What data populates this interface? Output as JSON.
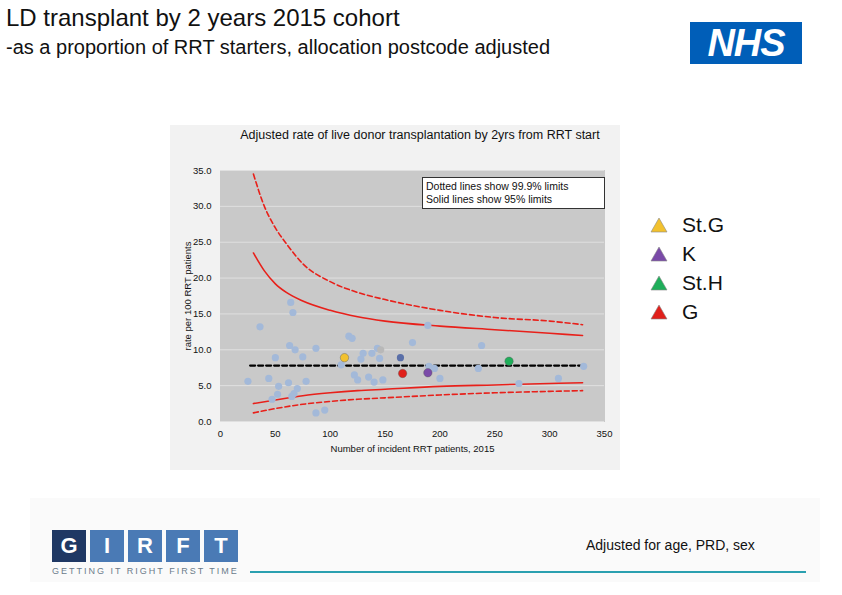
{
  "page": {
    "title": "LD transplant by 2 years 2015 cohort",
    "subtitle": "-as a proportion of RRT starters, allocation postcode adjusted",
    "logo": "NHS",
    "footer_logo_letters": [
      "G",
      "I",
      "R",
      "F",
      "T"
    ],
    "footer_tagline": "GETTING IT RIGHT FIRST TIME",
    "caption": "Adjusted for age, PRD, sex"
  },
  "chart_data": {
    "type": "scatter",
    "title": "Adjusted rate of live donor transplantation by 2yrs from RRT start",
    "x_label": "Number of incident RRT patients, 2015",
    "y_label": "rate per 100 RRT patients",
    "annotations": [
      "Dotted lines show 99.9% limits",
      "Solid lines show 95% limits"
    ],
    "xlim": [
      0,
      350
    ],
    "ylim": [
      0,
      35
    ],
    "xticks": [
      0,
      50,
      100,
      150,
      200,
      250,
      300,
      350
    ],
    "yticks": [
      {
        "value": 0,
        "label": "0.0"
      },
      {
        "value": 5,
        "label": "5.0"
      },
      {
        "value": 10,
        "label": "10.0"
      },
      {
        "value": 15,
        "label": "15.0"
      },
      {
        "value": 20,
        "label": "20.0"
      },
      {
        "value": 25,
        "label": "25.0"
      },
      {
        "value": 30,
        "label": "30.0"
      },
      {
        "value": 35,
        "label": "35.0"
      }
    ],
    "grid": true,
    "legend": "right",
    "series": [
      {
        "type": "line",
        "line_style": "dashed",
        "color": "#e8201a",
        "x": [
          30,
          40,
          50,
          60,
          75,
          100,
          125,
          150,
          200,
          250,
          300,
          330
        ],
        "values": [
          34.5,
          30.0,
          27.0,
          24.8,
          22.0,
          19.5,
          18.0,
          17.0,
          15.5,
          14.5,
          14.0,
          13.5
        ]
      },
      {
        "type": "line",
        "line_style": "solid",
        "color": "#e8201a",
        "x": [
          30,
          40,
          50,
          60,
          75,
          100,
          125,
          150,
          200,
          250,
          300,
          330
        ],
        "values": [
          23.5,
          21.0,
          19.2,
          18.0,
          16.8,
          15.5,
          14.6,
          14.0,
          13.3,
          12.8,
          12.3,
          12.0
        ]
      },
      {
        "type": "line",
        "line_style": "solid",
        "color": "#e8201a",
        "x": [
          30,
          50,
          75,
          100,
          125,
          150,
          200,
          250,
          300,
          330
        ],
        "values": [
          2.5,
          3.0,
          3.6,
          4.0,
          4.3,
          4.5,
          4.9,
          5.1,
          5.3,
          5.4
        ]
      },
      {
        "type": "line",
        "line_style": "dashed",
        "color": "#e8201a",
        "x": [
          30,
          50,
          75,
          100,
          125,
          150,
          200,
          250,
          300,
          330
        ],
        "values": [
          1.2,
          1.8,
          2.4,
          2.8,
          3.1,
          3.3,
          3.7,
          4.0,
          4.2,
          4.3
        ]
      },
      {
        "type": "line",
        "line_style": "dashed",
        "color": "#000000",
        "x": [
          27,
          331
        ],
        "values": [
          7.8,
          7.8
        ]
      },
      {
        "type": "scatter",
        "marker": "circle",
        "color": "#a3b9d9",
        "x": [
          25,
          36,
          44,
          47,
          50,
          52,
          53,
          62,
          63,
          64,
          65,
          66,
          67,
          68,
          70,
          75,
          78,
          87,
          87,
          95,
          110,
          117,
          120,
          122,
          125,
          128,
          130,
          135,
          138,
          140,
          143,
          145,
          148,
          175,
          189,
          190,
          195,
          200,
          235,
          238,
          272,
          308,
          331
        ],
        "values": [
          5.6,
          13.2,
          6.0,
          3.1,
          8.9,
          3.8,
          4.9,
          5.4,
          10.6,
          16.6,
          3.5,
          15.2,
          3.9,
          10.0,
          4.6,
          9.0,
          5.6,
          10.2,
          1.2,
          1.6,
          7.9,
          11.9,
          11.6,
          6.5,
          5.8,
          8.7,
          9.5,
          6.2,
          9.5,
          5.5,
          10.2,
          8.8,
          5.8,
          11.0,
          13.4,
          7.7,
          7.4,
          6.0,
          7.4,
          10.6,
          5.3,
          6.0,
          7.7
        ]
      },
      {
        "type": "scatter",
        "marker": "circle",
        "color": "#5a6fa8",
        "x": [
          164
        ],
        "values": [
          8.9
        ]
      },
      {
        "type": "scatter",
        "marker": "circle",
        "color": "#b8b8b8",
        "x": [
          146
        ],
        "values": [
          10.0
        ]
      },
      {
        "name": "St.G",
        "type": "scatter",
        "marker": "circle",
        "color": "#f2c12e",
        "x": [
          113
        ],
        "values": [
          8.9
        ]
      },
      {
        "name": "K",
        "type": "scatter",
        "marker": "circle",
        "color": "#7a4aa8",
        "x": [
          189
        ],
        "values": [
          6.8
        ]
      },
      {
        "name": "St.H",
        "type": "scatter",
        "marker": "circle",
        "color": "#1fae5a",
        "x": [
          263
        ],
        "values": [
          8.4
        ]
      },
      {
        "name": "G",
        "type": "scatter",
        "marker": "circle",
        "color": "#e0201b",
        "x": [
          166
        ],
        "values": [
          6.7
        ]
      }
    ]
  }
}
